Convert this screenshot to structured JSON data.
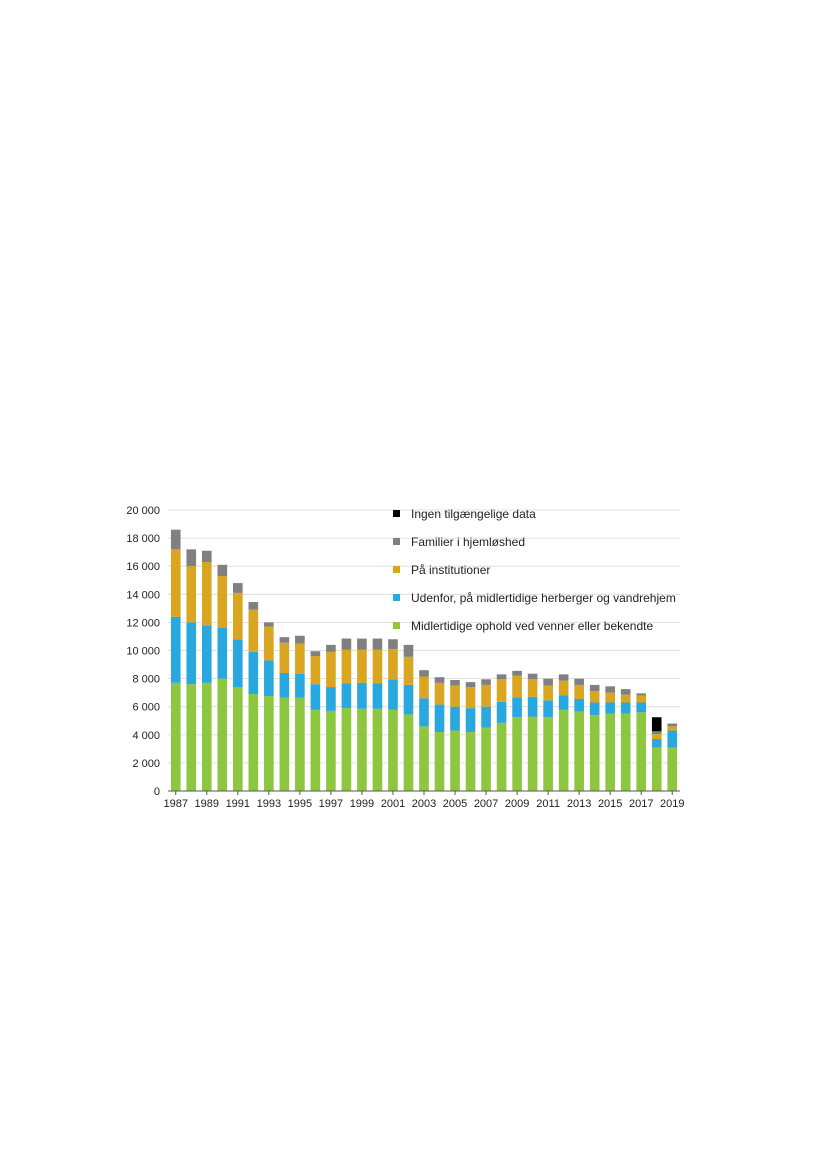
{
  "chart_data": {
    "type": "bar",
    "stacked": true,
    "categories": [
      "1987",
      "1988",
      "1989",
      "1990",
      "1991",
      "1992",
      "1993",
      "1994",
      "1995",
      "1996",
      "1997",
      "1998",
      "1999",
      "2000",
      "2001",
      "2002",
      "2003",
      "2004",
      "2005",
      "2006",
      "2007",
      "2008",
      "2009",
      "2010",
      "2011",
      "2012",
      "2013",
      "2014",
      "2015",
      "2016",
      "2017",
      "2018",
      "2019"
    ],
    "x_tick_labels": [
      "1987",
      "1989",
      "1991",
      "1993",
      "1995",
      "1997",
      "1999",
      "2001",
      "2003",
      "2005",
      "2007",
      "2009",
      "2011",
      "2013",
      "2015",
      "2017",
      "2019"
    ],
    "y_tick_labels": [
      "0",
      "2 000",
      "4 000",
      "6 000",
      "8 000",
      "10 000",
      "12 000",
      "14 000",
      "16 000",
      "18 000",
      "20 000"
    ],
    "ylim": [
      0,
      20000
    ],
    "grid": "horizontal",
    "legend_position": "top-right",
    "series": [
      {
        "name": "Midlertidige ophold ved venner eller bekendte",
        "color": "#8dc63f",
        "values": [
          7700,
          7600,
          7700,
          8000,
          7400,
          6900,
          6750,
          6650,
          6650,
          5800,
          5700,
          5900,
          5850,
          5850,
          5800,
          5450,
          4600,
          4200,
          4300,
          4200,
          4500,
          4850,
          5250,
          5300,
          5250,
          5800,
          5650,
          5400,
          5500,
          5500,
          5600,
          3100,
          3100
        ]
      },
      {
        "name": "Udenfor, på midlertidige herberger og vandrehjem",
        "color": "#29a8e0",
        "values": [
          4700,
          4400,
          4100,
          3600,
          3400,
          3000,
          2550,
          1750,
          1700,
          1800,
          1700,
          1750,
          1850,
          1800,
          2150,
          2100,
          2000,
          1950,
          1700,
          1700,
          1500,
          1500,
          1400,
          1400,
          1200,
          1000,
          900,
          900,
          800,
          800,
          700,
          600,
          1200
        ]
      },
      {
        "name": "På institutioner",
        "color": "#daa520",
        "values": [
          4800,
          4000,
          4500,
          3700,
          3300,
          3000,
          2400,
          2150,
          2150,
          2000,
          2500,
          2400,
          2350,
          2400,
          2150,
          2000,
          1550,
          1550,
          1500,
          1500,
          1550,
          1600,
          1550,
          1250,
          1050,
          1050,
          1000,
          800,
          700,
          550,
          500,
          350,
          300
        ]
      },
      {
        "name": "Familier i hjemløshed",
        "color": "#808080",
        "values": [
          1400,
          1200,
          800,
          800,
          700,
          550,
          300,
          400,
          550,
          350,
          500,
          800,
          800,
          800,
          700,
          850,
          450,
          400,
          400,
          350,
          400,
          350,
          350,
          400,
          500,
          450,
          450,
          450,
          450,
          400,
          150,
          200,
          200
        ]
      },
      {
        "name": "Ingen tilgængelige data",
        "color": "#000000",
        "values": [
          0,
          0,
          0,
          0,
          0,
          0,
          0,
          0,
          0,
          0,
          0,
          0,
          0,
          0,
          0,
          0,
          0,
          0,
          0,
          0,
          0,
          0,
          0,
          0,
          0,
          0,
          0,
          0,
          0,
          0,
          0,
          1000,
          0
        ]
      }
    ],
    "legend_order": [
      "Ingen tilgængelige data",
      "Familier i hjemløshed",
      "På institutioner",
      "Udenfor, på midlertidige herberger og vandrehjem",
      "Midlertidige ophold ved venner eller bekendte"
    ]
  }
}
